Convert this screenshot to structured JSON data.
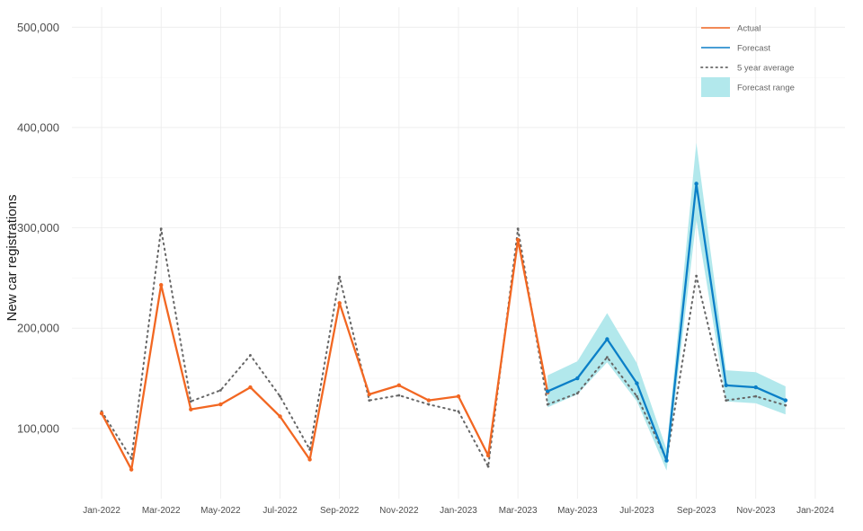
{
  "chart_data": {
    "type": "line",
    "title": "",
    "xlabel": "",
    "ylabel": "New car registrations",
    "ylim": [
      30000,
      520000
    ],
    "yticks": [
      100000,
      200000,
      300000,
      400000,
      500000
    ],
    "ytick_labels": [
      "100,000",
      "200,000",
      "300,000",
      "400,000",
      "500,000"
    ],
    "xticks": [
      "2022-01",
      "2022-03",
      "2022-05",
      "2022-07",
      "2022-09",
      "2022-11",
      "2023-01",
      "2023-03",
      "2023-05",
      "2023-07",
      "2023-09",
      "2023-11",
      "2024-01"
    ],
    "xtick_labels": [
      "Jan-2022",
      "Mar-2022",
      "May-2022",
      "Jul-2022",
      "Sep-2022",
      "Nov-2022",
      "Jan-2023",
      "Mar-2023",
      "May-2023",
      "Jul-2023",
      "Sep-2023",
      "Nov-2023",
      "Jan-2024"
    ],
    "xlim": [
      "2021-12",
      "2024-02"
    ],
    "grid": true,
    "legend_position": "top-right",
    "series": [
      {
        "name": "Actual",
        "color": "#f26722",
        "style": "solid",
        "x": [
          "2022-01",
          "2022-02",
          "2022-03",
          "2022-04",
          "2022-05",
          "2022-06",
          "2022-07",
          "2022-08",
          "2022-09",
          "2022-10",
          "2022-11",
          "2022-12",
          "2023-01",
          "2023-02",
          "2023-03",
          "2023-04"
        ],
        "values": [
          115000,
          59000,
          243000,
          119000,
          124000,
          141000,
          112000,
          69000,
          225000,
          134000,
          143000,
          128000,
          132000,
          73000,
          288000,
          136000
        ]
      },
      {
        "name": "Forecast",
        "color": "#0b7fc7",
        "style": "solid",
        "x": [
          "2023-04",
          "2023-05",
          "2023-06",
          "2023-07",
          "2023-08",
          "2023-09",
          "2023-10",
          "2023-11",
          "2023-12"
        ],
        "values": [
          137000,
          150000,
          189000,
          145000,
          68000,
          344000,
          143000,
          141000,
          128000
        ]
      },
      {
        "name": "5 year average",
        "color": "#666666",
        "style": "dotted",
        "x": [
          "2022-01",
          "2022-02",
          "2022-03",
          "2022-04",
          "2022-05",
          "2022-06",
          "2022-07",
          "2022-08",
          "2022-09",
          "2022-10",
          "2022-11",
          "2022-12",
          "2023-01",
          "2023-02",
          "2023-03",
          "2023-04",
          "2023-05",
          "2023-06",
          "2023-07",
          "2023-08",
          "2023-09",
          "2023-10",
          "2023-11",
          "2023-12"
        ],
        "values": [
          117000,
          70000,
          299000,
          127000,
          138000,
          173000,
          132000,
          79000,
          251000,
          128000,
          133000,
          124000,
          117000,
          62000,
          299000,
          124000,
          135000,
          171000,
          132000,
          69000,
          252000,
          128000,
          132000,
          123000
        ]
      }
    ],
    "range": {
      "name": "Forecast range",
      "color": "#b2e8ec",
      "x": [
        "2023-04",
        "2023-05",
        "2023-06",
        "2023-07",
        "2023-08",
        "2023-09",
        "2023-10",
        "2023-11",
        "2023-12"
      ],
      "lower": [
        121000,
        134000,
        166000,
        127000,
        58000,
        308000,
        127000,
        125000,
        114000
      ],
      "upper": [
        153000,
        167000,
        215000,
        165000,
        79000,
        385000,
        158000,
        156000,
        142000
      ]
    }
  }
}
